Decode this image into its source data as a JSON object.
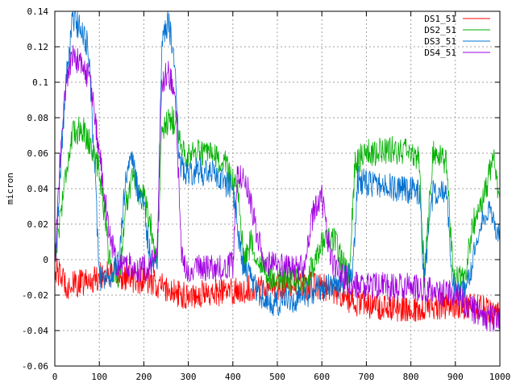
{
  "chart_data": {
    "type": "line",
    "title": "",
    "xlabel": "",
    "ylabel": "micron",
    "xlim": [
      0,
      1000
    ],
    "ylim": [
      -0.06,
      0.14
    ],
    "xticks": [
      0,
      100,
      200,
      300,
      400,
      500,
      600,
      700,
      800,
      900,
      1000
    ],
    "xtick_labels": [
      "0",
      "100",
      "200",
      "300",
      "400",
      "500",
      "600",
      "700",
      "800",
      "900",
      "1000"
    ],
    "yticks": [
      -0.06,
      -0.04,
      -0.02,
      0,
      0.02,
      0.04,
      0.06,
      0.08,
      0.1,
      0.12,
      0.14
    ],
    "ytick_labels": [
      "-0.06",
      "-0.04",
      "-0.02",
      "0",
      "0.02",
      "0.04",
      "0.06",
      "0.08",
      "0.1",
      "0.12",
      "0.14"
    ],
    "grid": true,
    "legend_position": "top-right",
    "x_step": 1,
    "noise_amplitude": 0.008,
    "series": [
      {
        "name": "DS1_51",
        "color": "#ff0000",
        "anchors": [
          [
            0,
            -0.005
          ],
          [
            30,
            -0.015
          ],
          [
            80,
            -0.012
          ],
          [
            110,
            -0.008
          ],
          [
            200,
            -0.012
          ],
          [
            240,
            -0.015
          ],
          [
            280,
            -0.02
          ],
          [
            400,
            -0.018
          ],
          [
            470,
            -0.015
          ],
          [
            600,
            -0.015
          ],
          [
            680,
            -0.025
          ],
          [
            800,
            -0.028
          ],
          [
            900,
            -0.025
          ],
          [
            1000,
            -0.03
          ]
        ]
      },
      {
        "name": "DS2_51",
        "color": "#00b000",
        "anchors": [
          [
            0,
            0.0
          ],
          [
            10,
            0.02
          ],
          [
            25,
            0.05
          ],
          [
            40,
            0.07
          ],
          [
            60,
            0.075
          ],
          [
            80,
            0.065
          ],
          [
            100,
            0.05
          ],
          [
            115,
            0.02
          ],
          [
            125,
            -0.005
          ],
          [
            145,
            -0.01
          ],
          [
            160,
            0.03
          ],
          [
            175,
            0.05
          ],
          [
            185,
            0.04
          ],
          [
            200,
            0.035
          ],
          [
            215,
            0.02
          ],
          [
            230,
            0.0
          ],
          [
            240,
            0.07
          ],
          [
            260,
            0.08
          ],
          [
            275,
            0.075
          ],
          [
            290,
            0.06
          ],
          [
            330,
            0.06
          ],
          [
            380,
            0.055
          ],
          [
            410,
            0.04
          ],
          [
            425,
            0.0
          ],
          [
            440,
            0.01
          ],
          [
            460,
            0.0
          ],
          [
            480,
            -0.01
          ],
          [
            550,
            -0.012
          ],
          [
            570,
            -0.01
          ],
          [
            600,
            0.01
          ],
          [
            630,
            0.01
          ],
          [
            660,
            -0.01
          ],
          [
            675,
            0.055
          ],
          [
            700,
            0.06
          ],
          [
            750,
            0.062
          ],
          [
            800,
            0.06
          ],
          [
            820,
            0.055
          ],
          [
            830,
            -0.01
          ],
          [
            850,
            0.06
          ],
          [
            880,
            0.055
          ],
          [
            895,
            -0.01
          ],
          [
            920,
            -0.01
          ],
          [
            940,
            0.02
          ],
          [
            970,
            0.04
          ],
          [
            985,
            0.06
          ],
          [
            1000,
            0.03
          ]
        ]
      },
      {
        "name": "DS3_51",
        "color": "#0070d0",
        "anchors": [
          [
            0,
            -0.005
          ],
          [
            10,
            0.04
          ],
          [
            25,
            0.1
          ],
          [
            40,
            0.135
          ],
          [
            60,
            0.13
          ],
          [
            75,
            0.12
          ],
          [
            90,
            0.05
          ],
          [
            100,
            -0.01
          ],
          [
            125,
            -0.01
          ],
          [
            145,
            0.0
          ],
          [
            160,
            0.05
          ],
          [
            175,
            0.055
          ],
          [
            185,
            0.04
          ],
          [
            200,
            0.03
          ],
          [
            215,
            0.0
          ],
          [
            230,
            0.0
          ],
          [
            240,
            0.12
          ],
          [
            255,
            0.135
          ],
          [
            270,
            0.11
          ],
          [
            280,
            0.055
          ],
          [
            290,
            0.05
          ],
          [
            320,
            0.05
          ],
          [
            360,
            0.048
          ],
          [
            400,
            0.04
          ],
          [
            420,
            0.0
          ],
          [
            440,
            -0.01
          ],
          [
            460,
            -0.02
          ],
          [
            500,
            -0.025
          ],
          [
            560,
            -0.02
          ],
          [
            600,
            -0.015
          ],
          [
            640,
            -0.015
          ],
          [
            670,
            -0.005
          ],
          [
            680,
            0.045
          ],
          [
            720,
            0.042
          ],
          [
            780,
            0.04
          ],
          [
            820,
            0.038
          ],
          [
            830,
            -0.015
          ],
          [
            850,
            0.04
          ],
          [
            880,
            0.035
          ],
          [
            895,
            -0.015
          ],
          [
            920,
            -0.02
          ],
          [
            940,
            0.0
          ],
          [
            960,
            0.02
          ],
          [
            980,
            0.03
          ],
          [
            1000,
            0.01
          ]
        ]
      },
      {
        "name": "DS4_51",
        "color": "#a000e0",
        "anchors": [
          [
            0,
            -0.005
          ],
          [
            10,
            0.05
          ],
          [
            25,
            0.1
          ],
          [
            40,
            0.115
          ],
          [
            60,
            0.11
          ],
          [
            80,
            0.1
          ],
          [
            100,
            0.06
          ],
          [
            120,
            0.02
          ],
          [
            135,
            0.0
          ],
          [
            145,
            -0.003
          ],
          [
            200,
            -0.005
          ],
          [
            230,
            0.0
          ],
          [
            240,
            0.1
          ],
          [
            255,
            0.105
          ],
          [
            270,
            0.095
          ],
          [
            285,
            0.0
          ],
          [
            300,
            -0.005
          ],
          [
            380,
            -0.005
          ],
          [
            400,
            -0.003
          ],
          [
            410,
            0.05
          ],
          [
            430,
            0.045
          ],
          [
            450,
            0.02
          ],
          [
            470,
            -0.003
          ],
          [
            560,
            -0.005
          ],
          [
            580,
            0.025
          ],
          [
            600,
            0.035
          ],
          [
            620,
            0.0
          ],
          [
            650,
            -0.01
          ],
          [
            680,
            -0.015
          ],
          [
            800,
            -0.015
          ],
          [
            850,
            -0.018
          ],
          [
            900,
            -0.02
          ],
          [
            950,
            -0.03
          ],
          [
            1000,
            -0.035
          ]
        ]
      }
    ]
  }
}
